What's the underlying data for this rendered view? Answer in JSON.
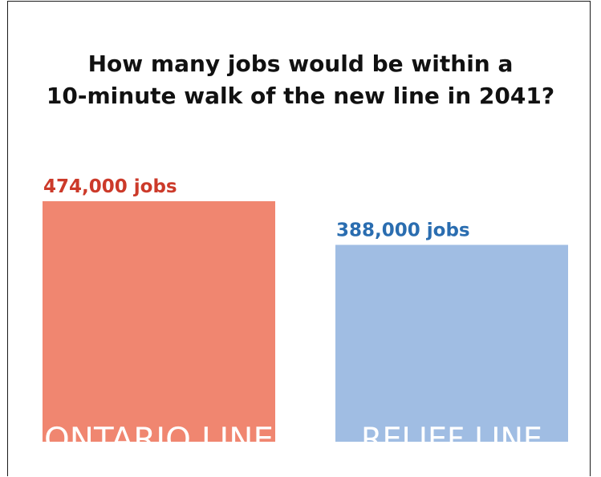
{
  "chart_data": {
    "type": "bar",
    "title_lines": [
      "How many jobs would be within a",
      "10-minute walk of the new line in 2041?"
    ],
    "categories": [
      "ONTARIO LINE",
      "RELIEF LINE"
    ],
    "values": [
      474000,
      388000
    ],
    "value_labels": [
      "474,000 jobs",
      "388,000 jobs"
    ],
    "bar_colors": [
      "#f08670",
      "#a0bde3"
    ],
    "label_colors": [
      "#cc3a2a",
      "#2a6db0"
    ],
    "xlabel": "",
    "ylabel": "",
    "ylim": [
      0,
      474000
    ],
    "grid": false,
    "legend": "none"
  }
}
